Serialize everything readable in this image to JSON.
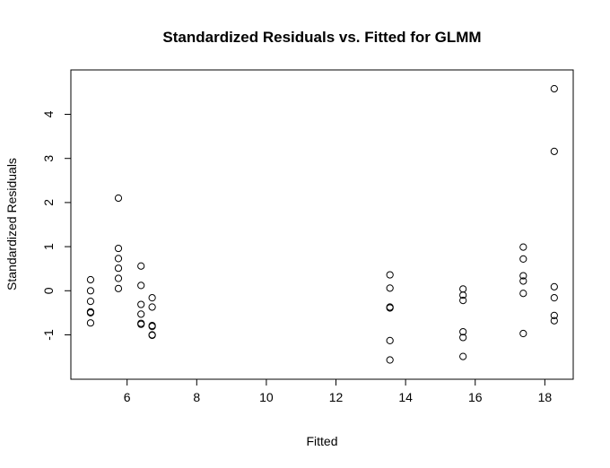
{
  "chart_data": {
    "type": "scatter",
    "title": "Standardized Residuals vs. Fitted for GLMM",
    "xlabel": "Fitted",
    "ylabel": "Standardized Residuals",
    "xlim": [
      4.9,
      18.3
    ],
    "ylim": [
      -1.6,
      4.6
    ],
    "xticks": [
      6,
      8,
      10,
      12,
      14,
      16,
      18
    ],
    "yticks": [
      -1,
      0,
      1,
      2,
      3,
      4
    ],
    "grid": false,
    "legend": "none",
    "marker": "open-circle",
    "points": [
      {
        "x": 4.95,
        "y": 0.25
      },
      {
        "x": 4.95,
        "y": 0.0
      },
      {
        "x": 4.95,
        "y": -0.24
      },
      {
        "x": 4.95,
        "y": -0.48
      },
      {
        "x": 4.95,
        "y": -0.5
      },
      {
        "x": 4.95,
        "y": -0.73
      },
      {
        "x": 5.75,
        "y": 2.1
      },
      {
        "x": 5.75,
        "y": 0.96
      },
      {
        "x": 5.75,
        "y": 0.73
      },
      {
        "x": 5.75,
        "y": 0.51
      },
      {
        "x": 5.75,
        "y": 0.28
      },
      {
        "x": 5.75,
        "y": 0.05
      },
      {
        "x": 6.4,
        "y": 0.56
      },
      {
        "x": 6.4,
        "y": 0.12
      },
      {
        "x": 6.4,
        "y": -0.31
      },
      {
        "x": 6.4,
        "y": -0.53
      },
      {
        "x": 6.4,
        "y": -0.74
      },
      {
        "x": 6.4,
        "y": -0.76
      },
      {
        "x": 6.72,
        "y": -0.16
      },
      {
        "x": 6.72,
        "y": -0.37
      },
      {
        "x": 6.72,
        "y": -0.79
      },
      {
        "x": 6.72,
        "y": -0.81
      },
      {
        "x": 6.72,
        "y": -1.0
      },
      {
        "x": 6.72,
        "y": -1.01
      },
      {
        "x": 13.55,
        "y": 0.36
      },
      {
        "x": 13.55,
        "y": 0.06
      },
      {
        "x": 13.55,
        "y": -0.37
      },
      {
        "x": 13.55,
        "y": -0.39
      },
      {
        "x": 13.55,
        "y": -1.13
      },
      {
        "x": 13.55,
        "y": -1.57
      },
      {
        "x": 15.65,
        "y": 0.04
      },
      {
        "x": 15.65,
        "y": -0.1
      },
      {
        "x": 15.65,
        "y": -0.22
      },
      {
        "x": 15.65,
        "y": -0.93
      },
      {
        "x": 15.65,
        "y": -1.06
      },
      {
        "x": 15.65,
        "y": -1.49
      },
      {
        "x": 17.38,
        "y": 0.99
      },
      {
        "x": 17.38,
        "y": 0.72
      },
      {
        "x": 17.38,
        "y": 0.34
      },
      {
        "x": 17.38,
        "y": 0.22
      },
      {
        "x": 17.38,
        "y": -0.06
      },
      {
        "x": 17.38,
        "y": -0.97
      },
      {
        "x": 18.27,
        "y": 4.58
      },
      {
        "x": 18.27,
        "y": 3.16
      },
      {
        "x": 18.27,
        "y": 0.09
      },
      {
        "x": 18.27,
        "y": -0.16
      },
      {
        "x": 18.27,
        "y": -0.56
      },
      {
        "x": 18.27,
        "y": -0.68
      }
    ]
  }
}
